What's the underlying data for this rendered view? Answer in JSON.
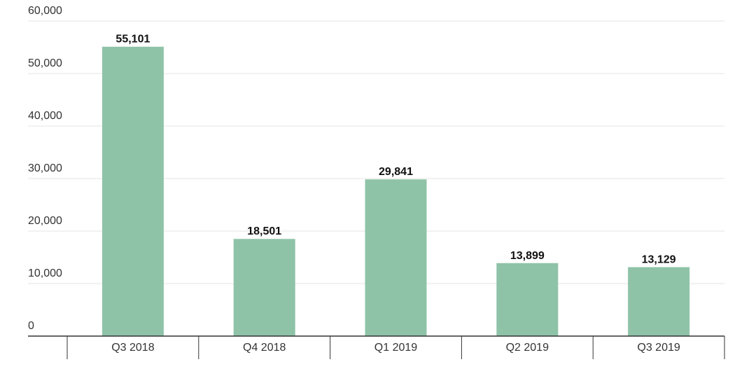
{
  "chart_data": {
    "type": "bar",
    "categories": [
      "Q3 2018",
      "Q4 2018",
      "Q1 2019",
      "Q2 2019",
      "Q3 2019"
    ],
    "values": [
      55101,
      18501,
      29841,
      13899,
      13129
    ],
    "value_labels": [
      "55,101",
      "18,501",
      "29,841",
      "13,899",
      "13,129"
    ],
    "title": "",
    "xlabel": "",
    "ylabel": "",
    "ylim": [
      0,
      60000
    ],
    "yticks": [
      0,
      10000,
      20000,
      30000,
      40000,
      50000,
      60000
    ],
    "ytick_labels": [
      "0",
      "10,000",
      "20,000",
      "30,000",
      "40,000",
      "50,000",
      "60,000"
    ],
    "grid": true,
    "bar_color": "#8fc3a8",
    "legend": "none"
  }
}
